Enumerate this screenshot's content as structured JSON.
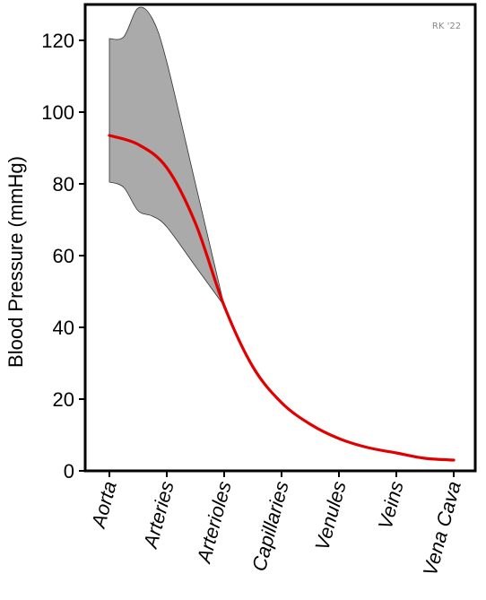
{
  "chart_data": {
    "type": "line",
    "title": "",
    "xlabel": "",
    "ylabel": "Blood Pressure (mmHg)",
    "categories": [
      "Aorta",
      "Arteries",
      "Arterioles",
      "Capillaries",
      "Venules",
      "Veins",
      "Vena Cava"
    ],
    "x": [
      0,
      0.5,
      1,
      1.5,
      2,
      2.5,
      3,
      3.5,
      4,
      4.5,
      5,
      5.5,
      6
    ],
    "series": [
      {
        "kind": "mean-line",
        "color": "#e00000",
        "values": [
          93.5,
          91,
          84.5,
          69,
          46,
          29,
          19,
          13,
          9,
          6.5,
          5,
          3.5,
          3
        ]
      },
      {
        "kind": "range-band",
        "color": "#aaaaaa",
        "x": [
          0,
          0.25,
          0.5,
          0.75,
          1,
          1.5,
          2
        ],
        "upper": [
          120.5,
          121,
          129,
          126,
          114,
          80,
          46
        ],
        "lower": [
          80.5,
          79,
          72.5,
          71,
          68,
          57,
          46
        ]
      }
    ],
    "ylim": [
      0,
      130
    ],
    "yticks": [
      0,
      20,
      40,
      60,
      80,
      100,
      120
    ],
    "grid": false,
    "legend": "none"
  },
  "watermark": "RK '22"
}
